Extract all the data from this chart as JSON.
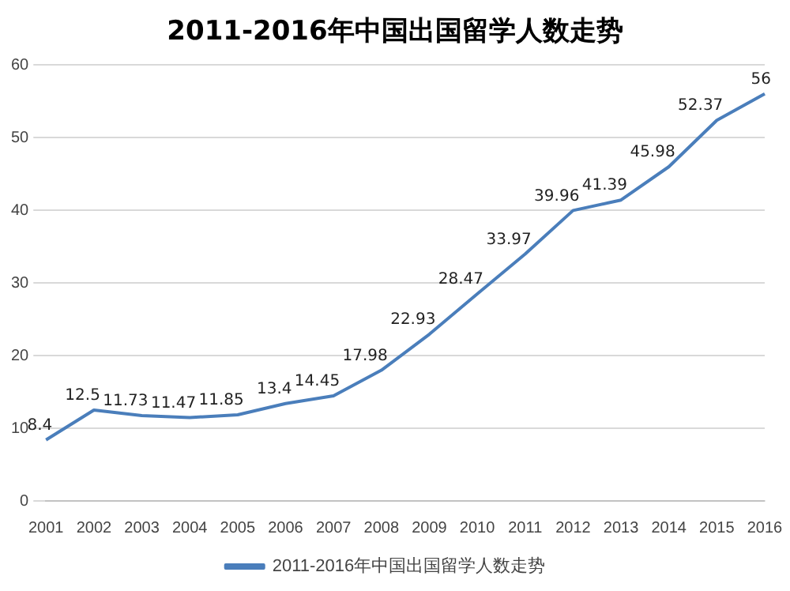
{
  "chart_data": {
    "type": "line",
    "title": "2011-2016年中国出国留学人数走势",
    "categories": [
      "2001",
      "2002",
      "2003",
      "2004",
      "2005",
      "2006",
      "2007",
      "2008",
      "2009",
      "2010",
      "2011",
      "2012",
      "2013",
      "2014",
      "2015",
      "2016"
    ],
    "series": [
      {
        "name": "2011-2016年中国出国留学人数走势",
        "color": "#4a7ebb",
        "values": [
          8.4,
          12.5,
          11.73,
          11.47,
          11.85,
          13.4,
          14.45,
          17.98,
          22.93,
          28.47,
          33.97,
          39.96,
          41.39,
          45.98,
          52.37,
          56
        ]
      }
    ],
    "ylim": [
      0,
      60
    ],
    "yticks": [
      0,
      10,
      20,
      30,
      40,
      50,
      60
    ],
    "grid": "y",
    "legend": "bottom",
    "marker": "none",
    "line_style": "solid",
    "data_labels": true
  }
}
